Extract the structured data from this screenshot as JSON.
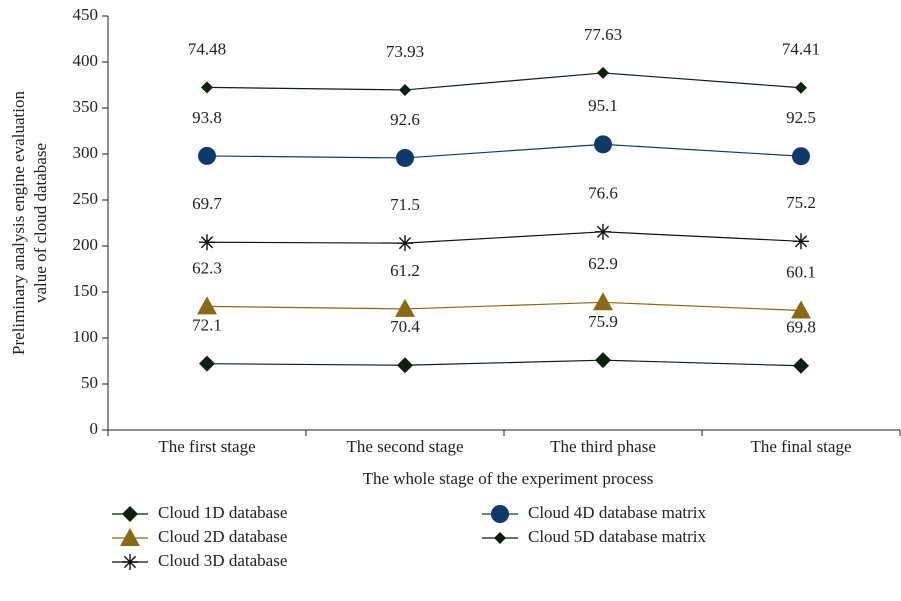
{
  "chart_data": {
    "type": "line",
    "stacked": true,
    "ylabel": [
      "Preliminary analysis engine evaluation",
      "value of cloud database"
    ],
    "xlabel": "The whole stage of the experiment process",
    "categories": [
      "The first stage",
      "The second stage",
      "The third phase",
      "The final stage"
    ],
    "ylim": [
      0,
      450
    ],
    "yticks": [
      0,
      50,
      100,
      150,
      200,
      250,
      300,
      350,
      400,
      450
    ],
    "series": [
      {
        "name": "Cloud 1D database",
        "color": "#0d1f0d",
        "marker": "diamond",
        "values": [
          72.1,
          70.4,
          75.9,
          69.8
        ]
      },
      {
        "name": "Cloud 2D database",
        "color": "#8b6914",
        "marker": "triangle",
        "values": [
          62.3,
          61.2,
          62.9,
          60.1
        ]
      },
      {
        "name": "Cloud 3D database",
        "color": "#111111",
        "marker": "asterisk",
        "values": [
          69.7,
          71.5,
          76.6,
          75.2
        ]
      },
      {
        "name": "Cloud 4D database matrix",
        "color": "#0e3a6b",
        "marker": "circle",
        "values": [
          93.8,
          92.6,
          95.1,
          92.5
        ]
      },
      {
        "name": "Cloud 5D database matrix",
        "color": "#0d1f0d",
        "marker": "small-diamond",
        "values": [
          74.48,
          73.93,
          77.63,
          74.41
        ]
      }
    ]
  }
}
